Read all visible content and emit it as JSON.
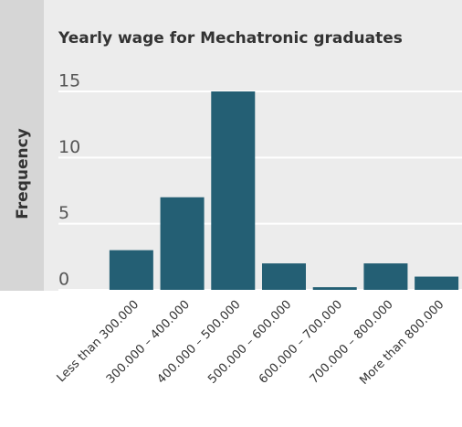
{
  "chart_data": {
    "type": "bar",
    "title": "Yearly wage for Mechatronic graduates",
    "ylabel": "Frequency",
    "categories": [
      "Less than 300.000",
      "300.000 – 400.000",
      "400.000 – 500.000",
      "500.000 – 600.000",
      "600.000 – 700.000",
      "700.000 – 800.000",
      "More than 800.000"
    ],
    "values": [
      3,
      7,
      15,
      2,
      0.2,
      2,
      1
    ],
    "color": "#245f74",
    "ylim": [
      0,
      15
    ],
    "yticks": [
      0,
      5,
      10,
      15
    ],
    "grid": true
  }
}
